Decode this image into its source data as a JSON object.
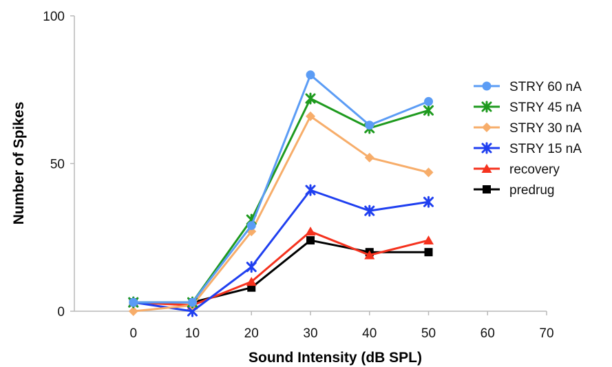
{
  "chart_data": {
    "type": "line",
    "title": "",
    "xlabel": "Sound Intensity (dB SPL)",
    "ylabel": "Number of Spikes",
    "xlim": [
      -10,
      70
    ],
    "ylim": [
      0,
      100
    ],
    "xticks": [
      0,
      10,
      20,
      30,
      40,
      50,
      60,
      70
    ],
    "yticks": [
      0,
      50,
      100
    ],
    "grid": false,
    "legend_position": "right",
    "x": [
      0,
      10,
      20,
      30,
      40,
      50
    ],
    "series": [
      {
        "name": "STRY 60 nA",
        "color": "#5b9cf5",
        "marker": "circle",
        "values": [
          3,
          3,
          29,
          80,
          63,
          71
        ]
      },
      {
        "name": "STRY 45 nA",
        "color": "#1e9a1e",
        "marker": "star",
        "values": [
          3,
          3,
          31,
          72,
          62,
          68
        ]
      },
      {
        "name": "STRY 30 nA",
        "color": "#f7ad6a",
        "marker": "diamond",
        "values": [
          0,
          2,
          27,
          66,
          52,
          47
        ]
      },
      {
        "name": "STRY 15 nA",
        "color": "#1f3ff0",
        "marker": "star",
        "values": [
          3,
          0,
          15,
          41,
          34,
          37
        ]
      },
      {
        "name": "recovery",
        "color": "#f5321e",
        "marker": "triangle",
        "values": [
          3,
          2,
          10,
          27,
          19,
          24
        ]
      },
      {
        "name": "predrug",
        "color": "#000000",
        "marker": "square",
        "values": [
          3,
          3,
          8,
          24,
          20,
          20
        ]
      }
    ]
  }
}
